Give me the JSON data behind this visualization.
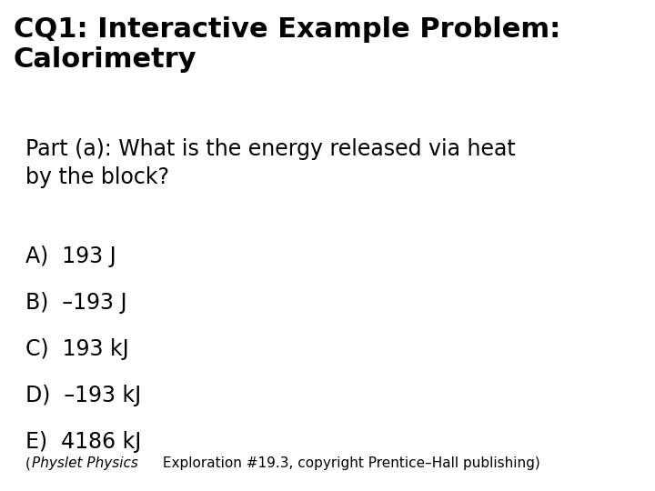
{
  "title_line1": "CQ1: Interactive Example Problem:",
  "title_line2": "Calorimetry",
  "subtitle": "Part (a): What is the energy released via heat\nby the block?",
  "choices": [
    "A)  193 J",
    "B)  –193 J",
    "C)  193 kJ",
    "D)  –193 kJ",
    "E)  4186 kJ"
  ],
  "footer_italic": "Physlet Physics",
  "footer_normal": " Exploration #19.3, copyright Prentice–Hall publishing)",
  "footer_prefix": "(",
  "bg_color": "#ffffff",
  "text_color": "#000000",
  "title_fontsize": 22,
  "subtitle_fontsize": 17,
  "choices_fontsize": 17,
  "footer_fontsize": 11
}
